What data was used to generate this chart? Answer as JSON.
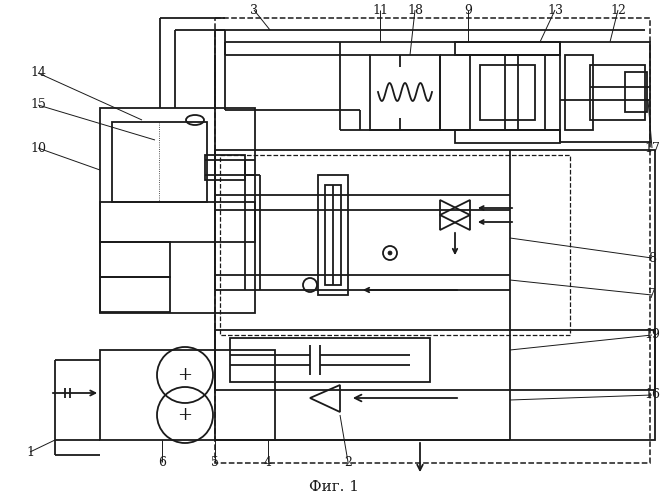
{
  "title": "Фиг. 1",
  "bg": "#ffffff",
  "lc": "#1a1a1a",
  "lw": 1.3,
  "label_fs": 9,
  "caption_fs": 11
}
